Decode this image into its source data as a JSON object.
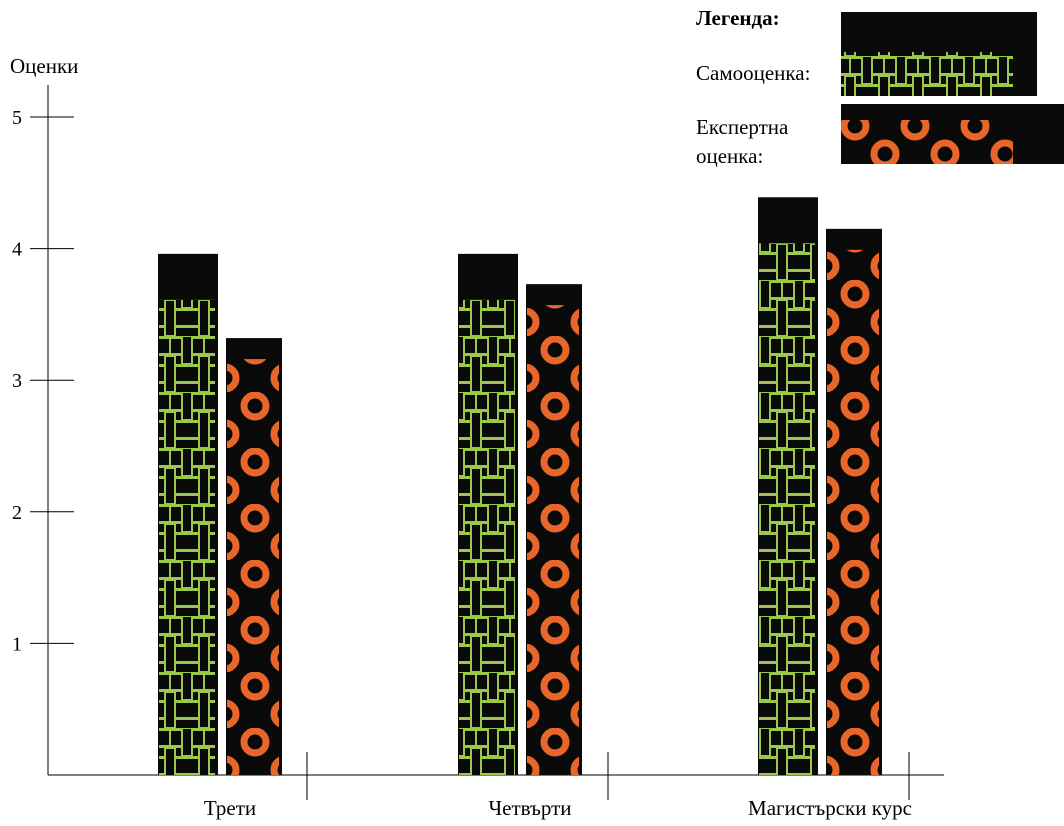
{
  "chart_data": {
    "type": "bar",
    "ylabel": "Оценки",
    "categories": [
      "Трети",
      "Четвърти",
      "Магистърски курс"
    ],
    "series": [
      {
        "name": "Самооценка:",
        "values": [
          3.96,
          3.96,
          4.39
        ],
        "color": "#9bc84a",
        "pattern": "woven"
      },
      {
        "name": "Експертна оценка:",
        "values": [
          3.32,
          3.73,
          4.15
        ],
        "color": "#e8662a",
        "pattern": "rings"
      }
    ],
    "ylim": [
      0,
      5
    ],
    "yticks": [
      1,
      2,
      3,
      4,
      5
    ],
    "grid": false,
    "legend": {
      "title": "Легенда:",
      "placement": "top-right"
    }
  }
}
